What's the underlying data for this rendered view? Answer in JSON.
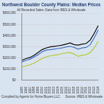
{
  "chart_data": {
    "type": "line",
    "title": "Northwest Boulder County Plains: Median Prices",
    "subtitle": "All Recorded Sales: Data from IRES & Wholesale",
    "footer_left": "Compiled by Agents for Home Buyers LLC",
    "footer_right": "Source: IRES & Wholesale",
    "categories": [
      "1995",
      "1996",
      "1997",
      "1998",
      "1999",
      "2000",
      "2001",
      "2002",
      "2003",
      "2004",
      "2005",
      "2006",
      "2007",
      "2008",
      "2009",
      "2010",
      "2011",
      "2012",
      "2013",
      "2014"
    ],
    "series": [
      {
        "color": "#000000",
        "values": [
          180000,
          195000,
          205000,
          225000,
          250000,
          275000,
          290000,
          300000,
          305000,
          310000,
          315000,
          325000,
          335000,
          320000,
          315000,
          325000,
          330000,
          360000,
          420000,
          490000
        ]
      },
      {
        "color": "#3f6fc4",
        "values": [
          165000,
          180000,
          190000,
          210000,
          230000,
          255000,
          270000,
          275000,
          280000,
          285000,
          290000,
          300000,
          305000,
          295000,
          280000,
          290000,
          295000,
          320000,
          380000,
          450000
        ]
      },
      {
        "color": "#b6c832",
        "values": [
          120000,
          130000,
          140000,
          155000,
          175000,
          195000,
          210000,
          220000,
          225000,
          230000,
          240000,
          245000,
          250000,
          235000,
          215000,
          225000,
          230000,
          250000,
          290000,
          350000
        ]
      }
    ],
    "ylim": [
      0,
      600000
    ],
    "yticks": [
      {
        "value": 0,
        "label": "$0"
      },
      {
        "value": 100000,
        "label": "$100,000"
      },
      {
        "value": 200000,
        "label": "$200,000"
      },
      {
        "value": 300000,
        "label": "$300,000"
      },
      {
        "value": 400000,
        "label": "$400,000"
      },
      {
        "value": 500000,
        "label": "$500,000"
      },
      {
        "value": 600000,
        "label": "$600,000"
      }
    ],
    "grid": true
  }
}
